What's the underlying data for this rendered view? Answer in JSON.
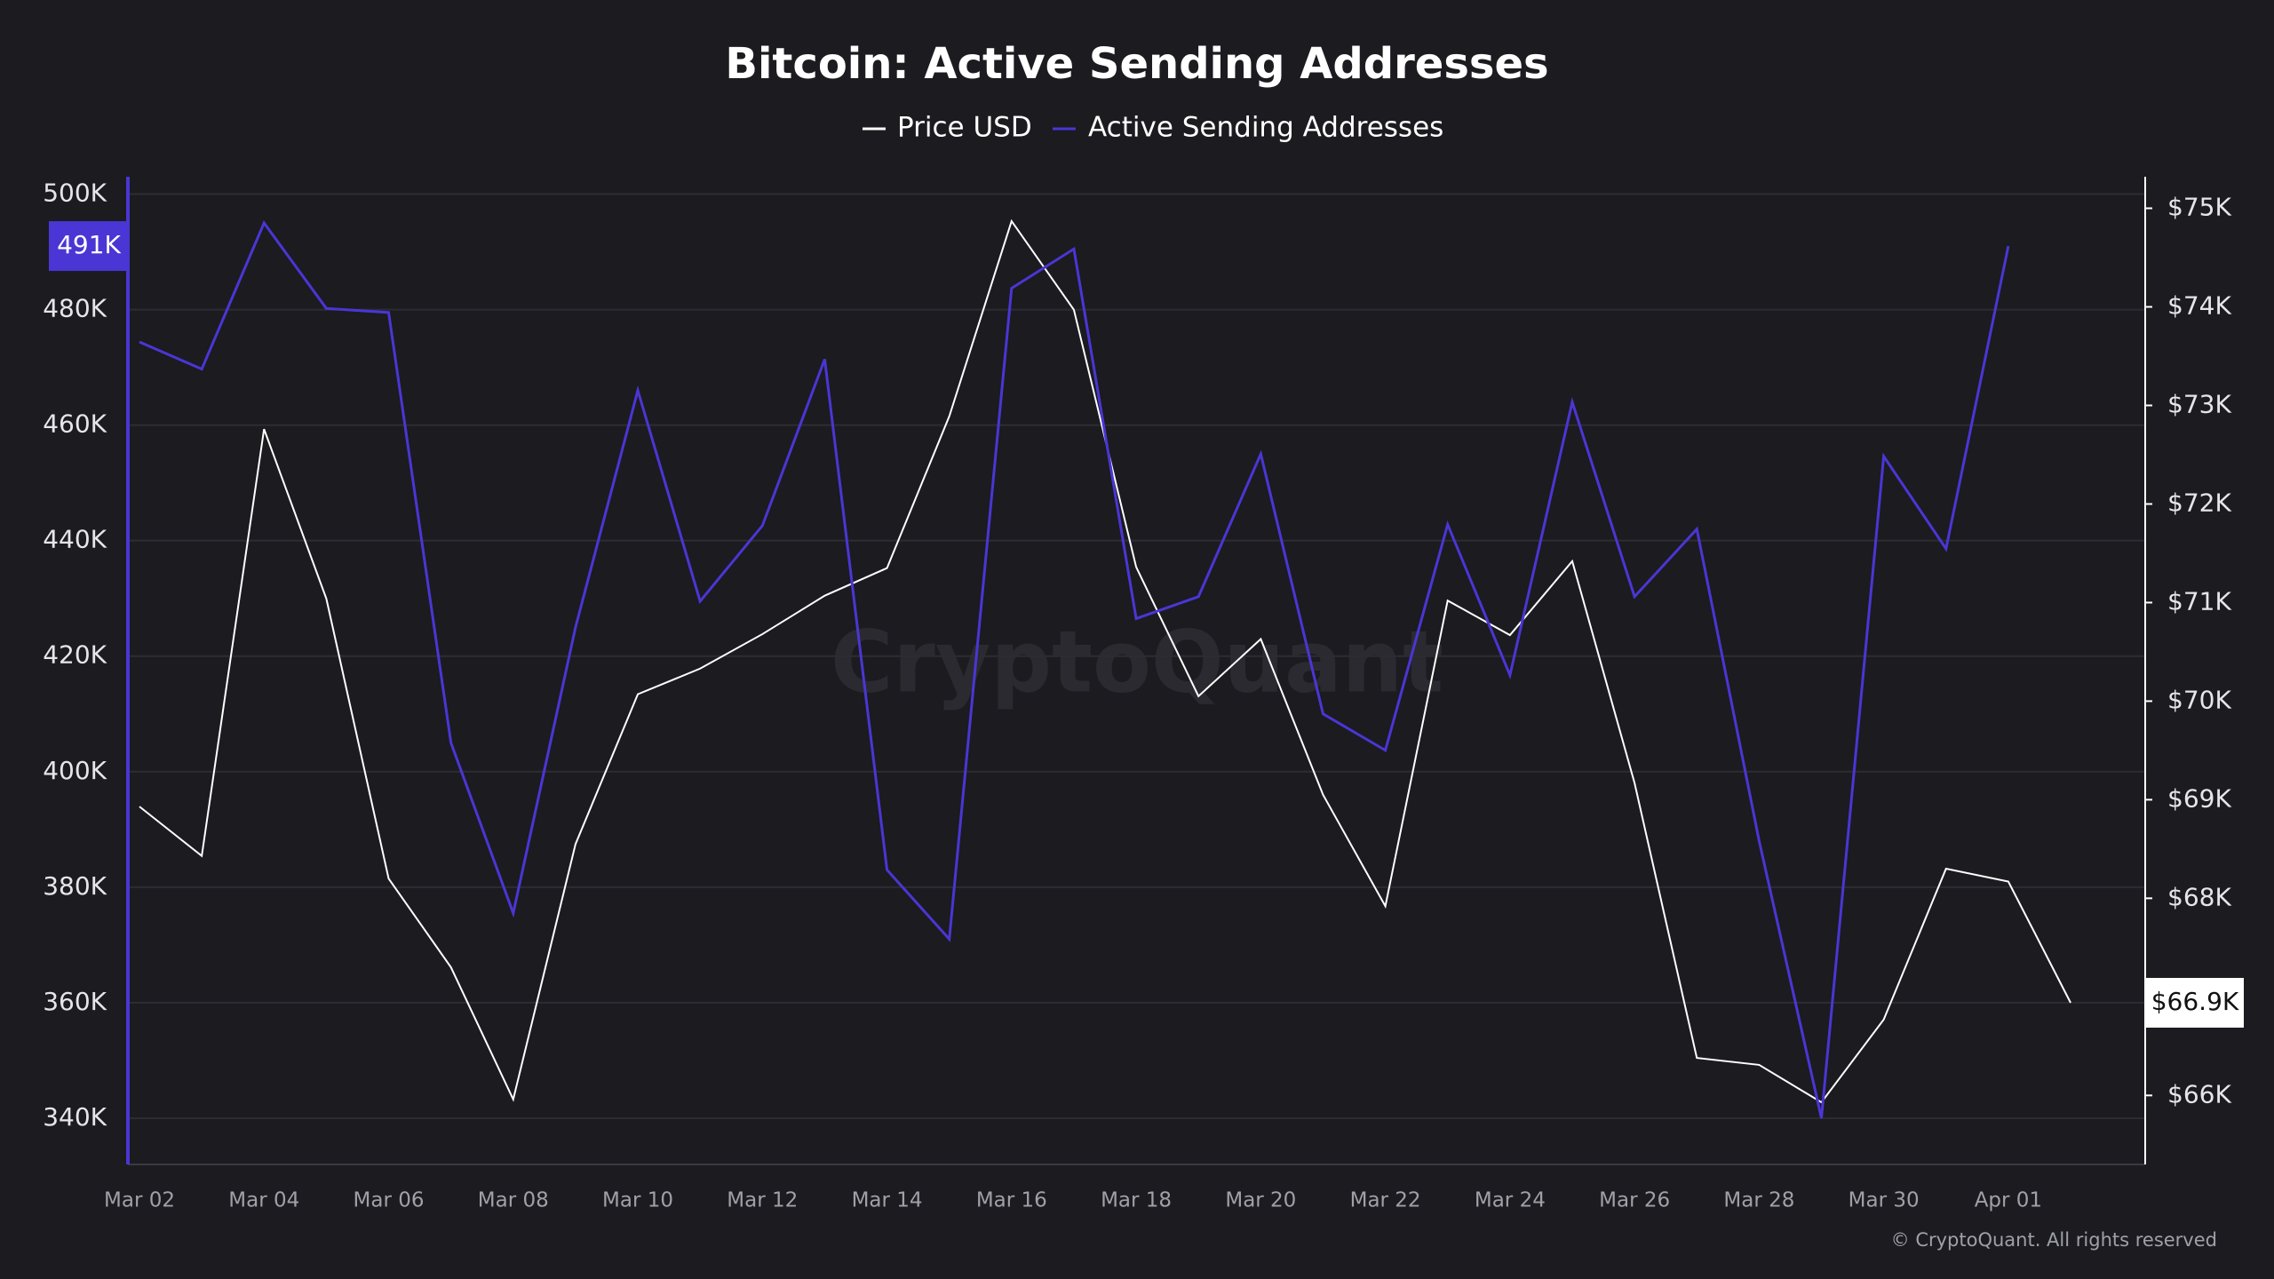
{
  "chart_data": {
    "type": "line",
    "title": "Bitcoin: Active Sending Addresses",
    "watermark": "CryptoQuant",
    "footer": "© CryptoQuant. All rights reserved",
    "categories": [
      "Mar 02",
      null,
      "Mar 04",
      null,
      "Mar 06",
      null,
      "Mar 08",
      null,
      "Mar 10",
      null,
      "Mar 12",
      null,
      "Mar 14",
      null,
      "Mar 16",
      null,
      "Mar 18",
      null,
      "Mar 20",
      null,
      "Mar 22",
      null,
      "Mar 24",
      null,
      "Mar 26",
      null,
      "Mar 28",
      null,
      "Mar 30",
      null,
      "Apr 01",
      null
    ],
    "series": [
      {
        "name": "Price USD",
        "color": "#ffffff",
        "axis": "y2",
        "values": [
          68930,
          68430,
          72760,
          71040,
          68200,
          67300,
          65960,
          68550,
          70070,
          70330,
          70680,
          71070,
          71350,
          72890,
          74870,
          73970,
          71360,
          70050,
          70630,
          69050,
          67920,
          71020,
          70670,
          71420,
          69170,
          66380,
          66310,
          65930,
          66770,
          68300,
          68170,
          66940
        ],
        "value_labels": [
          null,
          null,
          null,
          null,
          null,
          null,
          null,
          null,
          null,
          null,
          null,
          null,
          null,
          null,
          null,
          null,
          null,
          null,
          null,
          null,
          null,
          null,
          null,
          null,
          null,
          null,
          null,
          null,
          null,
          null,
          null,
          "$66.9K"
        ]
      },
      {
        "name": "Active Sending Addresses",
        "color": "#4a36d4",
        "values": [
          474400,
          469700,
          495000,
          480200,
          479500,
          405000,
          375500,
          425000,
          466000,
          429500,
          442600,
          471400,
          383000,
          371000,
          483700,
          490500,
          426500,
          430300,
          455000,
          410000,
          403700,
          442800,
          416700,
          464000,
          430300,
          442000,
          388000,
          340000,
          454600,
          438600,
          491000,
          null
        ],
        "value_labels": [
          null,
          null,
          null,
          null,
          null,
          null,
          null,
          null,
          null,
          null,
          null,
          null,
          null,
          null,
          null,
          null,
          null,
          null,
          null,
          null,
          null,
          null,
          null,
          null,
          null,
          null,
          null,
          null,
          null,
          null,
          "491K",
          null
        ]
      }
    ],
    "ylim": [
      332000,
      503000
    ],
    "yticks": [
      {
        "value": 340000,
        "label": "340K"
      },
      {
        "value": 360000,
        "label": "360K"
      },
      {
        "value": 380000,
        "label": "380K"
      },
      {
        "value": 400000,
        "label": "400K"
      },
      {
        "value": 420000,
        "label": "420K"
      },
      {
        "value": 440000,
        "label": "440K"
      },
      {
        "value": 460000,
        "label": "460K"
      },
      {
        "value": 480000,
        "label": "480K"
      },
      {
        "value": 500000,
        "label": "500K"
      }
    ],
    "y2lim": [
      65300,
      75320
    ],
    "y2ticks": [
      {
        "value": 66000,
        "label": "$66K"
      },
      {
        "value": 67000,
        "label": "$67K"
      },
      {
        "value": 68000,
        "label": "$68K"
      },
      {
        "value": 69000,
        "label": "$69K"
      },
      {
        "value": 70000,
        "label": "$70K"
      },
      {
        "value": 71000,
        "label": "$71K"
      },
      {
        "value": 72000,
        "label": "$72K"
      },
      {
        "value": 73000,
        "label": "$73K"
      },
      {
        "value": 74000,
        "label": "$74K"
      },
      {
        "value": 75000,
        "label": "$75K"
      }
    ],
    "grid": true,
    "legend": "top"
  }
}
